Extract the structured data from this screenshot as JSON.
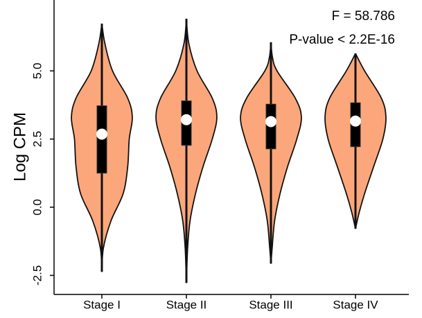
{
  "chart_data": {
    "type": "violin",
    "y_label": "Log CPM",
    "annotations": [
      "F = 58.786",
      "P-value < 2.2E-16"
    ],
    "categories": [
      "Stage I",
      "Stage II",
      "Stage III",
      "Stage IV"
    ],
    "color": "#fca77b",
    "ylim": [
      -3.2,
      7.6
    ],
    "yticks": [
      -2.5,
      {
        "value": 0,
        "label": "0.0"
      },
      2.5,
      {
        "value": 5,
        "label": "5.0"
      }
    ],
    "min": [
      -2.37,
      -2.78,
      -2.07,
      -0.79
    ],
    "q1": [
      1.25,
      2.27,
      2.14,
      2.22
    ],
    "median": [
      2.68,
      3.21,
      3.14,
      3.16
    ],
    "q3": [
      3.72,
      3.9,
      3.78,
      3.83
    ],
    "max": [
      6.73,
      6.91,
      6.05,
      5.64
    ],
    "violins": [
      {
        "y": [
          6.73,
          6.0,
          5.0,
          4.0,
          3.3,
          2.5,
          1.5,
          0.5,
          -0.5,
          -1.5,
          -2.37
        ],
        "width": [
          0,
          0.1,
          0.35,
          0.85,
          1.0,
          0.9,
          0.85,
          0.7,
          0.3,
          0.05,
          0
        ]
      },
      {
        "y": [
          6.91,
          6.0,
          5.0,
          4.0,
          3.3,
          2.5,
          1.5,
          0.5,
          -0.5,
          -1.5,
          -2.78
        ],
        "width": [
          0,
          0.08,
          0.35,
          0.85,
          1.0,
          0.85,
          0.55,
          0.3,
          0.12,
          0.04,
          0
        ]
      },
      {
        "y": [
          6.05,
          5.5,
          5.0,
          4.0,
          3.3,
          2.5,
          1.5,
          0.5,
          -0.5,
          -1.5,
          -2.07
        ],
        "width": [
          0,
          0.05,
          0.2,
          0.8,
          1.0,
          0.85,
          0.55,
          0.3,
          0.12,
          0.04,
          0
        ]
      },
      {
        "y": [
          5.64,
          5.0,
          4.0,
          3.3,
          2.5,
          1.5,
          0.5,
          -0.2,
          -0.79
        ],
        "width": [
          0,
          0.3,
          0.85,
          1.0,
          0.9,
          0.6,
          0.3,
          0.12,
          0
        ]
      }
    ]
  }
}
